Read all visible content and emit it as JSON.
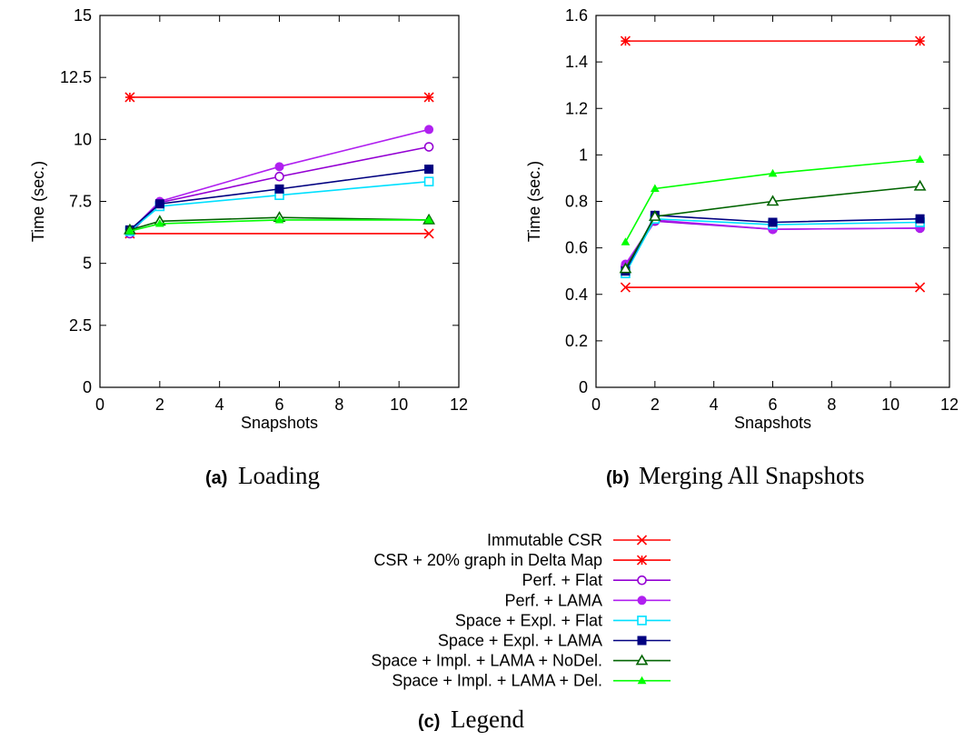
{
  "captions": {
    "a": {
      "tag": "(a)",
      "text": "Loading"
    },
    "b": {
      "tag": "(b)",
      "text": "Merging All Snapshots"
    },
    "c": {
      "tag": "(c)",
      "text": "Legend"
    }
  },
  "chart_data": [
    {
      "type": "line",
      "xlabel": "Snapshots",
      "ylabel": "Time (sec.)",
      "xlim": [
        0,
        12
      ],
      "ylim": [
        0,
        15
      ],
      "xticks": [
        "0",
        "2",
        "4",
        "6",
        "8",
        "10",
        "12"
      ],
      "yticks": [
        "0",
        "2.5",
        "5",
        "7.5",
        "10",
        "12.5",
        "15"
      ],
      "grid": false,
      "series": [
        {
          "name": "Immutable CSR",
          "color": "#ff0000",
          "marker": "x",
          "x": [
            1,
            11
          ],
          "y": [
            6.2,
            6.2
          ]
        },
        {
          "name": "CSR + 20% graph in Delta Map",
          "color": "#ff0000",
          "marker": "star",
          "x": [
            1,
            11
          ],
          "y": [
            11.7,
            11.7
          ]
        },
        {
          "name": "Perf. + Flat",
          "color": "#9400d3",
          "marker": "circle-open",
          "x": [
            1,
            2,
            6,
            11
          ],
          "y": [
            6.2,
            7.45,
            8.5,
            9.7
          ]
        },
        {
          "name": "Perf. + LAMA",
          "color": "#b020f0",
          "marker": "circle-filled",
          "x": [
            1,
            2,
            6,
            11
          ],
          "y": [
            6.3,
            7.5,
            8.9,
            10.4
          ]
        },
        {
          "name": "Space + Expl. + Flat",
          "color": "#00e0ff",
          "marker": "square-open",
          "x": [
            1,
            2,
            6,
            11
          ],
          "y": [
            6.3,
            7.3,
            7.75,
            8.3
          ]
        },
        {
          "name": "Space + Expl. + LAMA",
          "color": "#000080",
          "marker": "square-filled",
          "x": [
            1,
            2,
            6,
            11
          ],
          "y": [
            6.35,
            7.4,
            8.0,
            8.8
          ]
        },
        {
          "name": "Space + Impl. + LAMA + NoDel.",
          "color": "#006400",
          "marker": "triangle-open",
          "x": [
            1,
            2,
            6,
            11
          ],
          "y": [
            6.35,
            6.7,
            6.85,
            6.75
          ]
        },
        {
          "name": "Space + Impl. + LAMA + Del.",
          "color": "#00ff00",
          "marker": "triangle-filled",
          "x": [
            1,
            2,
            6,
            11
          ],
          "y": [
            6.3,
            6.6,
            6.75,
            6.75
          ]
        }
      ]
    },
    {
      "type": "line",
      "xlabel": "Snapshots",
      "ylabel": "Time (sec.)",
      "xlim": [
        0,
        12
      ],
      "ylim": [
        0,
        1.6
      ],
      "xticks": [
        "0",
        "2",
        "4",
        "6",
        "8",
        "10",
        "12"
      ],
      "yticks": [
        "0",
        "0.2",
        "0.4",
        "0.6",
        "0.8",
        "1",
        "1.2",
        "1.4",
        "1.6"
      ],
      "grid": false,
      "series": [
        {
          "name": "Immutable CSR",
          "color": "#ff0000",
          "marker": "x",
          "x": [
            1,
            11
          ],
          "y": [
            0.43,
            0.43
          ]
        },
        {
          "name": "CSR + 20% graph in Delta Map",
          "color": "#ff0000",
          "marker": "star",
          "x": [
            1,
            11
          ],
          "y": [
            1.49,
            1.49
          ]
        },
        {
          "name": "Perf. + Flat",
          "color": "#9400d3",
          "marker": "circle-open",
          "x": [
            1,
            2,
            6,
            11
          ],
          "y": [
            0.52,
            0.715,
            0.68,
            0.685
          ]
        },
        {
          "name": "Perf. + LAMA",
          "color": "#b020f0",
          "marker": "circle-filled",
          "x": [
            1,
            2,
            6,
            11
          ],
          "y": [
            0.53,
            0.72,
            0.68,
            0.685
          ]
        },
        {
          "name": "Space + Expl. + Flat",
          "color": "#00e0ff",
          "marker": "square-open",
          "x": [
            1,
            2,
            6,
            11
          ],
          "y": [
            0.49,
            0.725,
            0.7,
            0.71
          ]
        },
        {
          "name": "Space + Expl. + LAMA",
          "color": "#000080",
          "marker": "square-filled",
          "x": [
            1,
            2,
            6,
            11
          ],
          "y": [
            0.5,
            0.74,
            0.71,
            0.725
          ]
        },
        {
          "name": "Space + Impl. + LAMA + NoDel.",
          "color": "#006400",
          "marker": "triangle-open",
          "x": [
            1,
            2,
            6,
            11
          ],
          "y": [
            0.51,
            0.735,
            0.8,
            0.865
          ]
        },
        {
          "name": "Space + Impl. + LAMA + Del.",
          "color": "#00ff00",
          "marker": "triangle-filled",
          "x": [
            1,
            2,
            6,
            11
          ],
          "y": [
            0.625,
            0.855,
            0.92,
            0.98
          ]
        }
      ]
    }
  ]
}
